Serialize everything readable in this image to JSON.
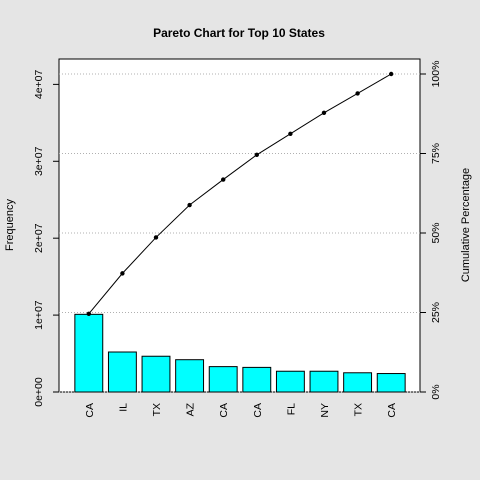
{
  "chart_data": {
    "type": "bar",
    "title": "Pareto Chart for Top 10 States",
    "xlabel": "",
    "ylabel": "Frequency",
    "y2label": "Cumulative Percentage",
    "categories": [
      "CA",
      "IL",
      "TX",
      "AZ",
      "CA",
      "CA",
      "FL",
      "NY",
      "TX",
      "CA"
    ],
    "values": [
      10100000,
      5200000,
      4650000,
      4200000,
      3300000,
      3200000,
      2700000,
      2700000,
      2500000,
      2400000
    ],
    "cumulative_percent": [
      24.6,
      37.3,
      48.6,
      58.8,
      66.8,
      74.6,
      81.2,
      87.8,
      93.9,
      100.0
    ],
    "ylim": [
      0,
      43300000
    ],
    "y_ticks": [
      {
        "value": 0,
        "label": "0e+00"
      },
      {
        "value": 10000000,
        "label": "1e+07"
      },
      {
        "value": 20000000,
        "label": "2e+07"
      },
      {
        "value": 30000000,
        "label": "3e+07"
      },
      {
        "value": 40000000,
        "label": "4e+07"
      }
    ],
    "y2_ticks": [
      {
        "value": 0,
        "label": "0%"
      },
      {
        "value": 25,
        "label": "25%"
      },
      {
        "value": 50,
        "label": "50%"
      },
      {
        "value": 75,
        "label": "75%"
      },
      {
        "value": 100,
        "label": "100%"
      }
    ],
    "bar_color": "#00ffff",
    "line_color": "#000000",
    "background": "#e5e5e5",
    "grid": true
  }
}
